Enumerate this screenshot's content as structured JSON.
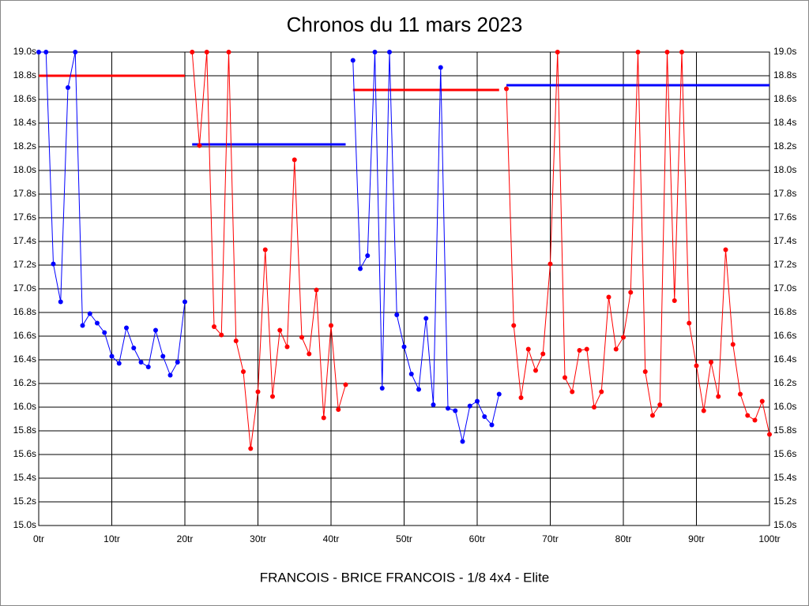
{
  "chart_data": {
    "type": "line",
    "title": "Chronos du 11 mars 2023",
    "x_label": "FRANCOIS - BRICE FRANCOIS - 1/8 4x4 - Elite",
    "x": [
      0,
      1,
      2,
      3,
      4,
      5,
      6,
      7,
      8,
      9,
      10,
      11,
      12,
      13,
      14,
      15,
      16,
      17,
      18,
      19,
      20,
      21,
      22,
      23,
      24,
      25,
      26,
      27,
      28,
      29,
      30,
      31,
      32,
      33,
      34,
      35,
      36,
      37,
      38,
      39,
      40,
      41,
      42,
      43,
      44,
      45,
      46,
      47,
      48,
      49,
      50,
      51,
      52,
      53,
      54,
      55,
      56,
      57,
      58,
      59,
      60,
      61,
      62,
      63,
      64,
      65,
      66,
      67,
      68,
      69,
      70,
      71,
      72,
      73,
      74,
      75,
      76,
      77,
      78,
      79,
      80,
      81,
      82,
      83,
      84,
      85,
      86,
      87,
      88,
      89,
      90,
      91,
      92,
      93,
      94,
      95,
      96,
      97,
      98,
      99,
      100
    ],
    "series": [
      {
        "color": "#0000ff",
        "values": [
          19.0,
          19.0,
          17.21,
          16.89,
          18.7,
          19.0,
          16.69,
          16.79,
          16.71,
          16.63,
          16.43,
          16.37,
          16.67,
          16.5,
          16.38,
          16.34,
          16.65,
          16.43,
          16.27,
          16.38,
          16.89,
          null,
          null,
          null,
          null,
          null,
          null,
          null,
          null,
          null,
          null,
          null,
          null,
          null,
          null,
          null,
          null,
          null,
          null,
          null,
          null,
          null,
          null,
          18.93,
          17.17,
          17.28,
          19.0,
          16.16,
          19.0,
          16.78,
          16.51,
          16.28,
          16.15,
          16.75,
          16.02,
          18.87,
          15.99,
          15.97,
          15.71,
          16.01,
          16.05,
          15.92,
          15.85,
          16.11,
          null,
          null,
          null,
          null,
          null,
          null,
          null,
          null,
          null,
          null,
          null,
          null,
          null,
          null,
          null,
          null,
          null,
          null,
          null,
          null,
          null,
          null,
          null,
          null,
          null,
          null,
          null,
          null,
          null,
          null,
          null,
          null,
          null,
          null,
          null,
          null,
          null
        ]
      },
      {
        "color": "#ff0000",
        "values": [
          null,
          null,
          null,
          null,
          null,
          null,
          null,
          null,
          null,
          null,
          null,
          null,
          null,
          null,
          null,
          null,
          null,
          null,
          null,
          null,
          null,
          19.0,
          18.21,
          19.0,
          16.68,
          16.61,
          19.0,
          16.56,
          16.3,
          15.65,
          16.13,
          17.33,
          16.09,
          16.65,
          16.51,
          18.09,
          16.59,
          16.45,
          16.99,
          15.91,
          16.69,
          15.98,
          16.19,
          null,
          null,
          null,
          null,
          null,
          null,
          null,
          null,
          null,
          null,
          null,
          null,
          null,
          null,
          null,
          null,
          null,
          null,
          null,
          null,
          null,
          18.69,
          16.69,
          16.08,
          16.49,
          16.31,
          16.45,
          17.21,
          19.0,
          16.25,
          16.13,
          16.48,
          16.49,
          16.0,
          16.13,
          16.93,
          16.49,
          16.59,
          16.97,
          19.0,
          16.3,
          15.93,
          16.02,
          19.0,
          16.9,
          19.0,
          16.71,
          16.35,
          15.97,
          16.38,
          16.09,
          17.33,
          16.53,
          16.11,
          15.93,
          15.89,
          16.05,
          15.77
        ]
      }
    ],
    "reference_lines": [
      {
        "x": [
          0,
          20
        ],
        "value": 18.8,
        "color": "#ff0000"
      },
      {
        "x": [
          21,
          42
        ],
        "value": 18.22,
        "color": "#0000ff"
      },
      {
        "x": [
          43,
          63
        ],
        "value": 18.68,
        "color": "#ff0000"
      },
      {
        "x": [
          64,
          100
        ],
        "value": 18.72,
        "color": "#0000ff"
      }
    ],
    "xlim": [
      0,
      100
    ],
    "xticks": [
      {
        "value": 0,
        "label": "0tr"
      },
      {
        "value": 10,
        "label": "10tr"
      },
      {
        "value": 20,
        "label": "20tr"
      },
      {
        "value": 30,
        "label": "30tr"
      },
      {
        "value": 40,
        "label": "40tr"
      },
      {
        "value": 50,
        "label": "50tr"
      },
      {
        "value": 60,
        "label": "60tr"
      },
      {
        "value": 70,
        "label": "70tr"
      },
      {
        "value": 80,
        "label": "80tr"
      },
      {
        "value": 90,
        "label": "90tr"
      },
      {
        "value": 100,
        "label": "100tr"
      }
    ],
    "ylim": [
      15,
      19
    ],
    "yticks": [
      {
        "value": 15.0,
        "label": "15.0s"
      },
      {
        "value": 15.2,
        "label": "15.2s"
      },
      {
        "value": 15.4,
        "label": "15.4s"
      },
      {
        "value": 15.6,
        "label": "15.6s"
      },
      {
        "value": 15.8,
        "label": "15.8s"
      },
      {
        "value": 16.0,
        "label": "16.0s"
      },
      {
        "value": 16.2,
        "label": "16.2s"
      },
      {
        "value": 16.4,
        "label": "16.4s"
      },
      {
        "value": 16.6,
        "label": "16.6s"
      },
      {
        "value": 16.8,
        "label": "16.8s"
      },
      {
        "value": 17.0,
        "label": "17.0s"
      },
      {
        "value": 17.2,
        "label": "17.2s"
      },
      {
        "value": 17.4,
        "label": "17.4s"
      },
      {
        "value": 17.6,
        "label": "17.6s"
      },
      {
        "value": 17.8,
        "label": "17.8s"
      },
      {
        "value": 18.0,
        "label": "18.0s"
      },
      {
        "value": 18.2,
        "label": "18.2s"
      },
      {
        "value": 18.4,
        "label": "18.4s"
      },
      {
        "value": 18.6,
        "label": "18.6s"
      },
      {
        "value": 18.8,
        "label": "18.8s"
      },
      {
        "value": 19.0,
        "label": "19.0s"
      }
    ],
    "grid": true
  }
}
